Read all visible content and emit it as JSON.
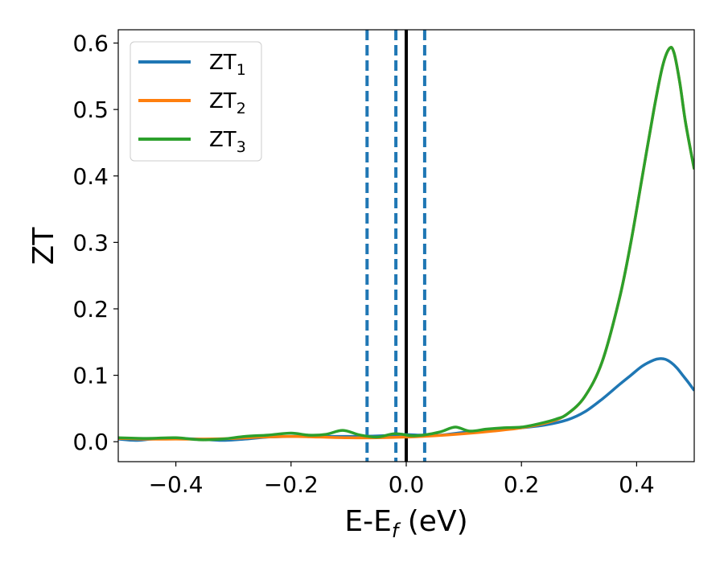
{
  "chart_data": {
    "type": "line",
    "xlabel_base": "E-E",
    "xlabel_sub": "f",
    "xlabel_tail": " (eV)",
    "ylabel": "ZT",
    "xlim": [
      -0.5,
      0.5
    ],
    "ylim": [
      -0.03,
      0.62
    ],
    "xticks": [
      -0.4,
      -0.2,
      0.0,
      0.2,
      0.4
    ],
    "xtick_labels": [
      "−0.4",
      "−0.2",
      "0.0",
      "0.2",
      "0.4"
    ],
    "yticks": [
      0.0,
      0.1,
      0.2,
      0.3,
      0.4,
      0.5,
      0.6
    ],
    "ytick_labels": [
      "0.0",
      "0.1",
      "0.2",
      "0.3",
      "0.4",
      "0.5",
      "0.6"
    ],
    "grid": false,
    "legend_position": "top-left",
    "vlines": [
      {
        "x": -0.068,
        "style": "dashed",
        "color": "#1f77b4"
      },
      {
        "x": -0.018,
        "style": "dashed",
        "color": "#1f77b4"
      },
      {
        "x": 0.0,
        "style": "solid",
        "color": "#000000"
      },
      {
        "x": 0.032,
        "style": "dashed",
        "color": "#1f77b4"
      }
    ],
    "series": [
      {
        "name": "ZT",
        "name_sub": "1",
        "color": "#1f77b4",
        "points": [
          [
            -0.5,
            0.004
          ],
          [
            -0.47,
            0.002
          ],
          [
            -0.44,
            0.004
          ],
          [
            -0.4,
            0.005
          ],
          [
            -0.36,
            0.004
          ],
          [
            -0.32,
            0.002
          ],
          [
            -0.28,
            0.004
          ],
          [
            -0.24,
            0.007
          ],
          [
            -0.2,
            0.008
          ],
          [
            -0.16,
            0.008
          ],
          [
            -0.12,
            0.008
          ],
          [
            -0.08,
            0.008
          ],
          [
            -0.04,
            0.009
          ],
          [
            -0.01,
            0.011
          ],
          [
            0.02,
            0.01
          ],
          [
            0.06,
            0.01
          ],
          [
            0.1,
            0.014
          ],
          [
            0.15,
            0.017
          ],
          [
            0.2,
            0.021
          ],
          [
            0.24,
            0.025
          ],
          [
            0.28,
            0.033
          ],
          [
            0.31,
            0.045
          ],
          [
            0.34,
            0.064
          ],
          [
            0.37,
            0.086
          ],
          [
            0.39,
            0.1
          ],
          [
            0.41,
            0.114
          ],
          [
            0.43,
            0.123
          ],
          [
            0.44,
            0.125
          ],
          [
            0.45,
            0.124
          ],
          [
            0.46,
            0.119
          ],
          [
            0.47,
            0.111
          ],
          [
            0.48,
            0.1
          ],
          [
            0.49,
            0.089
          ],
          [
            0.5,
            0.077
          ]
        ]
      },
      {
        "name": "ZT",
        "name_sub": "2",
        "color": "#ff7f0e",
        "points": [
          [
            -0.5,
            0.005
          ],
          [
            -0.45,
            0.004
          ],
          [
            -0.4,
            0.004
          ],
          [
            -0.35,
            0.004
          ],
          [
            -0.3,
            0.005
          ],
          [
            -0.25,
            0.007
          ],
          [
            -0.2,
            0.008
          ],
          [
            -0.15,
            0.007
          ],
          [
            -0.1,
            0.006
          ],
          [
            -0.05,
            0.006
          ],
          [
            0.0,
            0.007
          ],
          [
            0.05,
            0.009
          ],
          [
            0.1,
            0.012
          ],
          [
            0.15,
            0.016
          ],
          [
            0.2,
            0.021
          ],
          [
            0.25,
            0.03
          ],
          [
            0.28,
            0.042
          ],
          [
            0.31,
            0.068
          ],
          [
            0.34,
            0.12
          ],
          [
            0.37,
            0.215
          ],
          [
            0.39,
            0.3
          ],
          [
            0.41,
            0.4
          ],
          [
            0.43,
            0.5
          ],
          [
            0.445,
            0.565
          ],
          [
            0.457,
            0.592
          ],
          [
            0.465,
            0.585
          ],
          [
            0.475,
            0.54
          ],
          [
            0.485,
            0.48
          ],
          [
            0.5,
            0.41
          ]
        ]
      },
      {
        "name": "ZT",
        "name_sub": "3",
        "color": "#2ca02c",
        "points": [
          [
            -0.5,
            0.006
          ],
          [
            -0.45,
            0.005
          ],
          [
            -0.4,
            0.006
          ],
          [
            -0.36,
            0.003
          ],
          [
            -0.32,
            0.004
          ],
          [
            -0.28,
            0.008
          ],
          [
            -0.24,
            0.01
          ],
          [
            -0.2,
            0.013
          ],
          [
            -0.17,
            0.01
          ],
          [
            -0.14,
            0.011
          ],
          [
            -0.11,
            0.017
          ],
          [
            -0.08,
            0.01
          ],
          [
            -0.05,
            0.007
          ],
          [
            -0.02,
            0.012
          ],
          [
            0.01,
            0.009
          ],
          [
            0.03,
            0.01
          ],
          [
            0.06,
            0.015
          ],
          [
            0.085,
            0.022
          ],
          [
            0.11,
            0.016
          ],
          [
            0.14,
            0.019
          ],
          [
            0.17,
            0.021
          ],
          [
            0.2,
            0.022
          ],
          [
            0.23,
            0.027
          ],
          [
            0.26,
            0.034
          ],
          [
            0.28,
            0.042
          ],
          [
            0.31,
            0.068
          ],
          [
            0.34,
            0.12
          ],
          [
            0.37,
            0.215
          ],
          [
            0.39,
            0.3
          ],
          [
            0.41,
            0.4
          ],
          [
            0.43,
            0.5
          ],
          [
            0.445,
            0.565
          ],
          [
            0.457,
            0.592
          ],
          [
            0.465,
            0.585
          ],
          [
            0.475,
            0.54
          ],
          [
            0.485,
            0.48
          ],
          [
            0.5,
            0.41
          ]
        ]
      }
    ]
  }
}
